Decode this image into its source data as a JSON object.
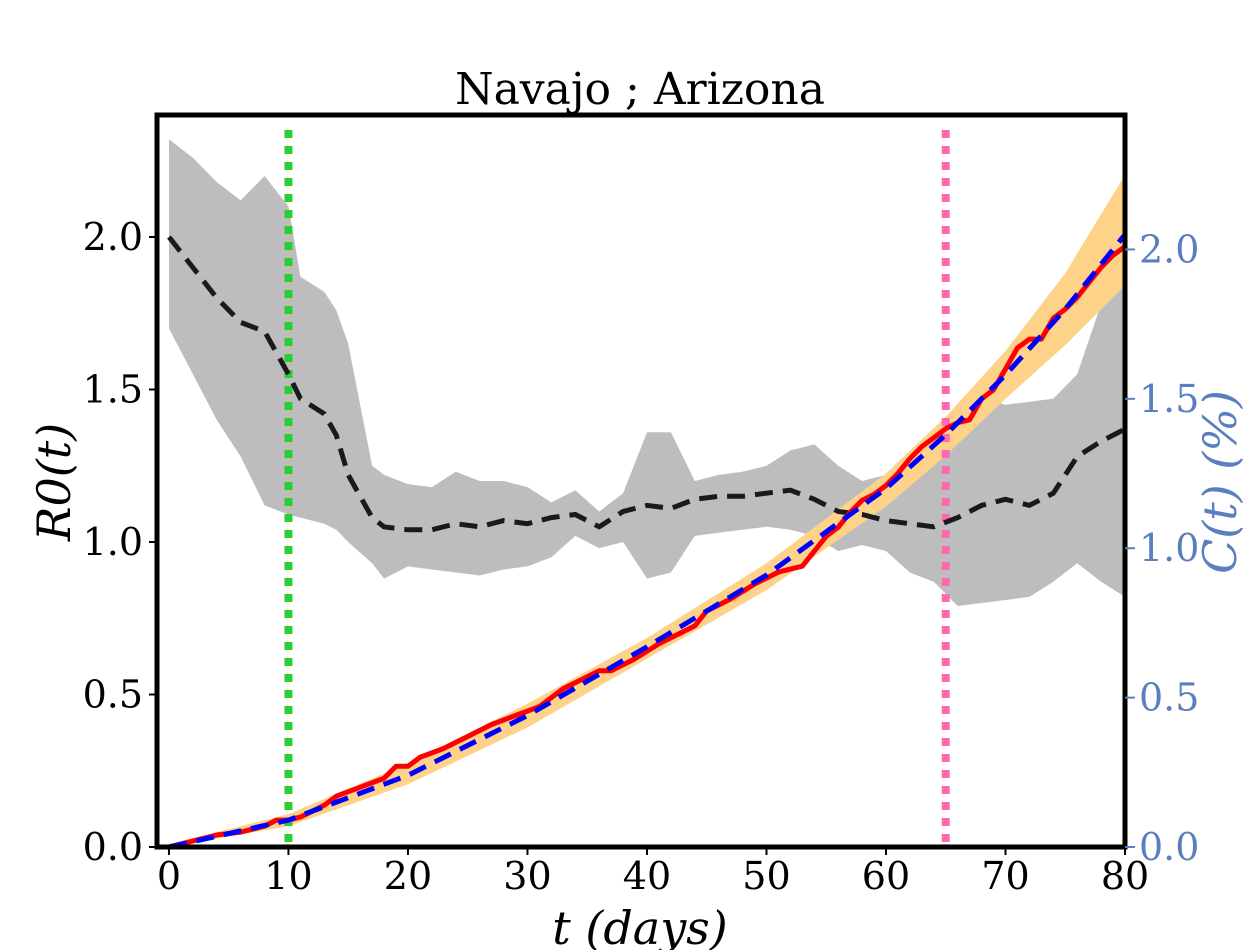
{
  "chart_data": {
    "type": "line",
    "title": "Navajo ; Arizona",
    "xlabel": "t (days)",
    "ylabel_left": "R0(t)",
    "ylabel_right": "C(t) (%)",
    "xlim": [
      -1,
      80
    ],
    "ylim_left": [
      0,
      2.4
    ],
    "ylim_right": [
      0,
      2.45
    ],
    "xticks": [
      0,
      10,
      20,
      30,
      40,
      50,
      60,
      70,
      80
    ],
    "xtick_labels": [
      "0",
      "10",
      "20",
      "30",
      "40",
      "50",
      "60",
      "70",
      "80"
    ],
    "yticks_left": [
      0,
      0.5,
      1.0,
      1.5,
      2.0
    ],
    "ytick_labels_left": [
      "0.0",
      "0.5",
      "1.0",
      "1.5",
      "2.0"
    ],
    "yticks_right": [
      0,
      0.5,
      1.0,
      1.5,
      2.0
    ],
    "ytick_labels_right": [
      "0.0",
      "0.5",
      "1.0",
      "1.5",
      "2.0"
    ],
    "grid": false,
    "colors": {
      "r0_line": "#1a1a1a",
      "r0_band": "#bdbdbd",
      "cases_observed": "#ff0000",
      "cases_fit": "#0000ff",
      "cases_band": "#ffd28a",
      "vline_start": "#2ecc2e",
      "vline_end": "#ff69b4",
      "right_axis": "#5a7fbf"
    },
    "vlines": [
      10,
      65
    ],
    "series": [
      {
        "axis": "left",
        "style": "dashed",
        "x": [
          0,
          2,
          4,
          6,
          8,
          10,
          11,
          13,
          14,
          15,
          17,
          18,
          20,
          22,
          24,
          26,
          28,
          30,
          32,
          34,
          36,
          38,
          40,
          42,
          44,
          46,
          48,
          50,
          52,
          54,
          56,
          58,
          60,
          62,
          64,
          66,
          68,
          70,
          72,
          74,
          76,
          78,
          80
        ],
        "values": [
          2.0,
          1.9,
          1.8,
          1.72,
          1.69,
          1.55,
          1.47,
          1.42,
          1.35,
          1.22,
          1.08,
          1.05,
          1.04,
          1.04,
          1.06,
          1.05,
          1.07,
          1.06,
          1.08,
          1.09,
          1.05,
          1.1,
          1.12,
          1.11,
          1.14,
          1.15,
          1.15,
          1.16,
          1.17,
          1.14,
          1.1,
          1.09,
          1.07,
          1.06,
          1.05,
          1.08,
          1.12,
          1.14,
          1.12,
          1.16,
          1.28,
          1.33,
          1.37
        ]
      },
      {
        "axis": "left",
        "style": "band",
        "x": [
          0,
          2,
          4,
          6,
          8,
          10,
          11,
          13,
          14,
          15,
          17,
          18,
          20,
          22,
          24,
          26,
          28,
          30,
          32,
          34,
          36,
          38,
          40,
          42,
          44,
          46,
          48,
          50,
          52,
          54,
          56,
          58,
          60,
          62,
          64,
          66,
          68,
          70,
          72,
          74,
          76,
          78,
          80
        ],
        "upper": [
          2.32,
          2.26,
          2.18,
          2.12,
          2.2,
          2.1,
          1.87,
          1.82,
          1.76,
          1.65,
          1.25,
          1.22,
          1.19,
          1.18,
          1.23,
          1.2,
          1.2,
          1.18,
          1.13,
          1.17,
          1.1,
          1.16,
          1.36,
          1.36,
          1.2,
          1.22,
          1.23,
          1.25,
          1.3,
          1.32,
          1.25,
          1.2,
          1.22,
          1.24,
          1.25,
          1.37,
          1.47,
          1.45,
          1.46,
          1.47,
          1.55,
          1.78,
          1.85
        ],
        "lower": [
          1.7,
          1.55,
          1.4,
          1.28,
          1.12,
          1.09,
          1.08,
          1.06,
          1.04,
          1.0,
          0.93,
          0.88,
          0.92,
          0.91,
          0.9,
          0.89,
          0.91,
          0.92,
          0.95,
          1.02,
          0.98,
          1.0,
          0.88,
          0.9,
          1.02,
          1.03,
          1.04,
          1.05,
          1.04,
          1.02,
          0.97,
          0.99,
          0.97,
          0.9,
          0.87,
          0.79,
          0.8,
          0.81,
          0.82,
          0.87,
          0.93,
          0.87,
          0.82
        ]
      },
      {
        "axis": "right",
        "style": "solid",
        "x": [
          0,
          2,
          4,
          6,
          8,
          9,
          10,
          11,
          13,
          14,
          16,
          18,
          19,
          20,
          21,
          23,
          25,
          27,
          29,
          31,
          32,
          33,
          35,
          36,
          37,
          39,
          41,
          43,
          44,
          45,
          47,
          49,
          51,
          52,
          53,
          54,
          55,
          56,
          57,
          58,
          59,
          60,
          61,
          62,
          63,
          64,
          65,
          66,
          67,
          68,
          69,
          70,
          71,
          72,
          73,
          74,
          75,
          76,
          77,
          78,
          79,
          80
        ],
        "values": [
          0.0,
          0.02,
          0.04,
          0.05,
          0.07,
          0.09,
          0.09,
          0.1,
          0.14,
          0.17,
          0.2,
          0.23,
          0.27,
          0.27,
          0.3,
          0.33,
          0.37,
          0.41,
          0.44,
          0.47,
          0.5,
          0.53,
          0.57,
          0.59,
          0.59,
          0.63,
          0.68,
          0.72,
          0.74,
          0.79,
          0.83,
          0.88,
          0.92,
          0.93,
          0.94,
          0.99,
          1.04,
          1.07,
          1.12,
          1.16,
          1.18,
          1.21,
          1.25,
          1.3,
          1.34,
          1.37,
          1.4,
          1.42,
          1.43,
          1.5,
          1.53,
          1.6,
          1.67,
          1.7,
          1.7,
          1.77,
          1.8,
          1.84,
          1.89,
          1.94,
          1.98,
          2.01
        ]
      },
      {
        "axis": "right",
        "style": "dashed",
        "x": [
          0,
          10,
          20,
          30,
          40,
          50,
          60,
          65,
          70,
          75,
          80
        ],
        "values": [
          0.0,
          0.09,
          0.24,
          0.44,
          0.67,
          0.91,
          1.2,
          1.38,
          1.58,
          1.8,
          2.05
        ]
      },
      {
        "axis": "right",
        "style": "band",
        "x": [
          0,
          10,
          20,
          30,
          40,
          50,
          60,
          65,
          70,
          75,
          80
        ],
        "upper": [
          0.01,
          0.11,
          0.28,
          0.48,
          0.7,
          0.95,
          1.25,
          1.44,
          1.66,
          1.92,
          2.25
        ],
        "lower": [
          0.0,
          0.07,
          0.21,
          0.4,
          0.63,
          0.86,
          1.14,
          1.31,
          1.5,
          1.68,
          1.88
        ]
      }
    ]
  }
}
